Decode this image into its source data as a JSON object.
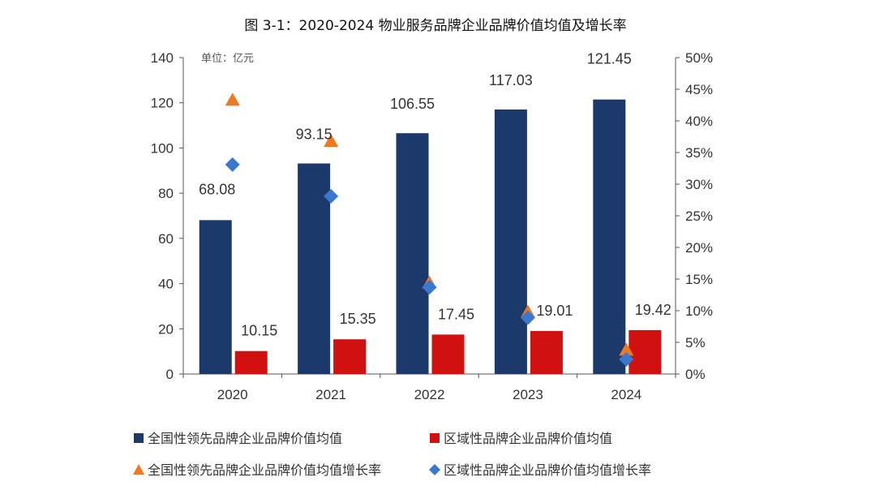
{
  "chart_data": {
    "type": "bar",
    "title": "图 3-1：2020-2024 物业服务品牌企业品牌价值均值及增长率",
    "unit_label": "单位：亿元",
    "categories": [
      "2020",
      "2021",
      "2022",
      "2023",
      "2024"
    ],
    "y_left": {
      "min": 0,
      "max": 140,
      "ticks": [
        0,
        20,
        40,
        60,
        80,
        100,
        120,
        140
      ]
    },
    "y_right": {
      "min": 0,
      "max": 50,
      "ticks": [
        "0%",
        "5%",
        "10%",
        "15%",
        "20%",
        "25%",
        "30%",
        "35%",
        "40%",
        "45%",
        "50%"
      ]
    },
    "series": [
      {
        "name": "全国性领先品牌企业品牌价值均值",
        "kind": "bar",
        "axis": "left",
        "color": "#1b3a6b",
        "values": [
          68.08,
          93.15,
          106.55,
          117.03,
          121.45
        ],
        "labels": [
          "68.08",
          "93.15",
          "106.55",
          "117.03",
          "121.45"
        ]
      },
      {
        "name": "区域性品牌企业品牌价值均值",
        "kind": "bar",
        "axis": "left",
        "color": "#d11010",
        "values": [
          10.15,
          15.35,
          17.45,
          19.01,
          19.42
        ],
        "labels": [
          "10.15",
          "15.35",
          "17.45",
          "19.01",
          "19.42"
        ]
      },
      {
        "name": "全国性领先品牌企业品牌价值均值增长率",
        "kind": "triangle",
        "axis": "right",
        "color": "#f07820",
        "values": [
          43.3,
          36.8,
          14.4,
          9.8,
          3.8
        ]
      },
      {
        "name": "区域性品牌企业品牌价值均值增长率",
        "kind": "diamond",
        "axis": "right",
        "color": "#3a78d0",
        "values": [
          33.1,
          28.1,
          13.7,
          8.9,
          2.3
        ]
      }
    ],
    "legend_position": "bottom",
    "grid": false
  }
}
